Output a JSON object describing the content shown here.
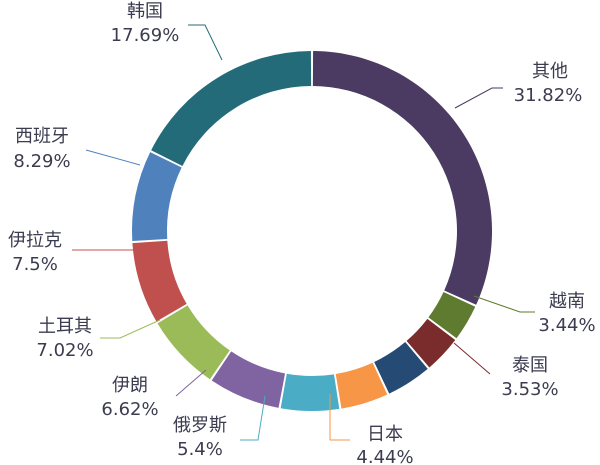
{
  "chart_data": {
    "type": "donut",
    "categories": [
      "其他",
      "越南",
      "泰国",
      null,
      "日本",
      "俄罗斯",
      "伊朗",
      "土耳其",
      "伊拉克",
      "西班牙",
      "韩国"
    ],
    "values": [
      31.82,
      3.44,
      3.53,
      4.25,
      4.44,
      5.4,
      6.62,
      7.02,
      7.5,
      8.29,
      17.69
    ],
    "value_labels": [
      "31.82%",
      "3.44%",
      "3.53%",
      null,
      "4.44%",
      "5.4%",
      "6.62%",
      "7.02%",
      "7.5%",
      "8.29%",
      "17.69%"
    ],
    "colors": [
      "#4b3a62",
      "#5f7b2f",
      "#7a2c2c",
      "#254b74",
      "#f79646",
      "#4bacc6",
      "#8064a2",
      "#9bbb59",
      "#c0504d",
      "#4f81bd",
      "#246b7a"
    ]
  }
}
